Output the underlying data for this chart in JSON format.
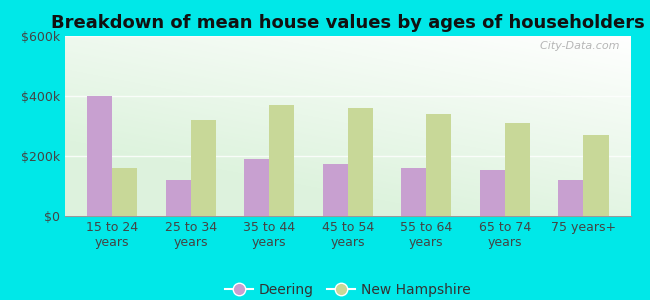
{
  "title": "Breakdown of mean house values by ages of householders",
  "categories": [
    "15 to 24\nyears",
    "25 to 34\nyears",
    "35 to 44\nyears",
    "45 to 54\nyears",
    "55 to 64\nyears",
    "65 to 74\nyears",
    "75 years+"
  ],
  "deering_values": [
    400000,
    120000,
    190000,
    175000,
    160000,
    155000,
    120000
  ],
  "nh_values": [
    160000,
    320000,
    370000,
    360000,
    340000,
    310000,
    270000
  ],
  "deering_color": "#c8a0d0",
  "nh_color": "#c8d898",
  "background_color_fig": "#00e8e8",
  "ylim": [
    0,
    600000
  ],
  "yticks": [
    0,
    200000,
    400000,
    600000
  ],
  "ytick_labels": [
    "$0",
    "$200k",
    "$400k",
    "$600k"
  ],
  "title_fontsize": 13,
  "tick_fontsize": 9,
  "legend_labels": [
    "Deering",
    "New Hampshire"
  ],
  "watermark": "  City-Data.com"
}
